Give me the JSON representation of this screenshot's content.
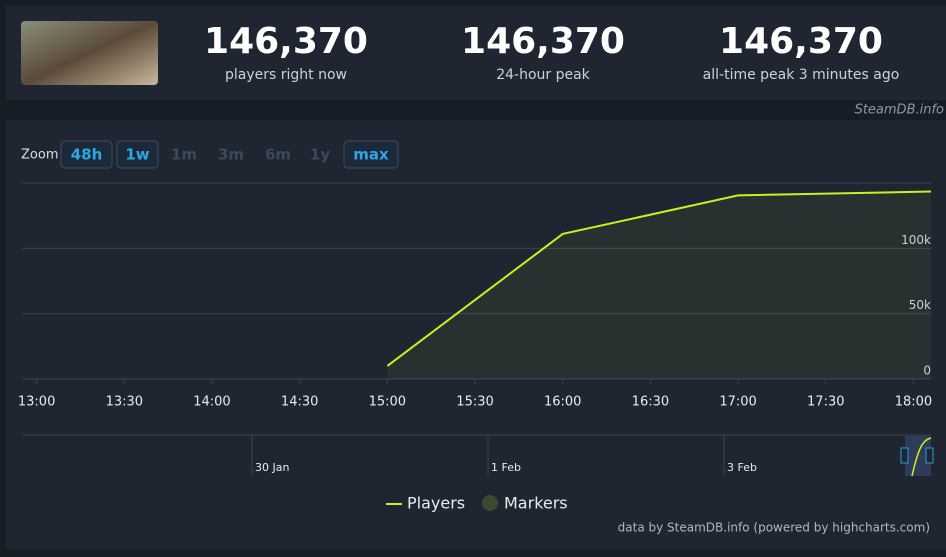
{
  "header": {
    "stats": [
      {
        "value": "146,370",
        "label": "players right now"
      },
      {
        "value": "146,370",
        "label": "24-hour peak"
      },
      {
        "value": "146,370",
        "label": "all-time peak 3 minutes ago"
      }
    ],
    "source": "SteamDB.info"
  },
  "zoom": {
    "label": "Zoom",
    "buttons": [
      {
        "label": "48h",
        "enabled": true
      },
      {
        "label": "1w",
        "enabled": true
      },
      {
        "label": "1m",
        "enabled": false
      },
      {
        "label": "3m",
        "enabled": false
      },
      {
        "label": "6m",
        "enabled": false
      },
      {
        "label": "1y",
        "enabled": false
      },
      {
        "label": "max",
        "enabled": true
      }
    ]
  },
  "chart_data": {
    "type": "line",
    "x": [
      "15:00",
      "16:00",
      "17:00",
      "18:06"
    ],
    "series": [
      {
        "name": "Players",
        "color": "#c6f221",
        "values": [
          10000,
          111000,
          140500,
          143500
        ]
      }
    ],
    "markers": {
      "name": "Markers",
      "color": "#3b4a2c"
    },
    "xlim": [
      "12:55",
      "18:06"
    ],
    "xticks": [
      "13:00",
      "13:30",
      "14:00",
      "14:30",
      "15:00",
      "15:30",
      "16:00",
      "16:30",
      "17:00",
      "17:30",
      "18:00"
    ],
    "ylim": [
      0,
      150000
    ],
    "yticks": [
      {
        "value": 0,
        "label": "0"
      },
      {
        "value": 50000,
        "label": "50k"
      },
      {
        "value": 100000,
        "label": "100k"
      }
    ],
    "grid": true,
    "navigator_labels": [
      "30 Jan",
      "1 Feb",
      "3 Feb"
    ],
    "credits": "data by SteamDB.info (powered by highcharts.com)"
  }
}
